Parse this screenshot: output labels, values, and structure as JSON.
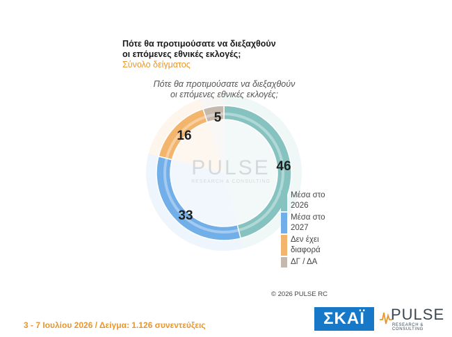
{
  "header": {
    "question_lines": [
      "Πότε θα προτιμούσατε να διεξαχθούν",
      "οι επόμενες εθνικές εκλογές;"
    ],
    "subtitle": "Σύνολο δείγματος"
  },
  "chart_data": {
    "type": "pie",
    "title_lines": [
      "Πότε θα προτιμούσατε να διεξαχθούν",
      "οι επόμενες εθνικές εκλογές;"
    ],
    "categories": [
      "Μέσα στο 2026",
      "Μέσα στο 2027",
      "Δεν έχει διαφορά",
      "ΔΓ / ΔΑ"
    ],
    "legend_lines": [
      [
        "Μέσα στο",
        "2026"
      ],
      [
        "Μέσα στο",
        "2027"
      ],
      [
        "Δεν έχει",
        "διαφορά"
      ],
      [
        "ΔΓ / ΔΑ"
      ]
    ],
    "values": [
      46,
      33,
      16,
      5
    ],
    "colors": [
      "#86c3c0",
      "#72aee8",
      "#f3b46c",
      "#c5b8ac"
    ],
    "legend_position": "right"
  },
  "watermark": {
    "name": "PULSE",
    "sub": "RESEARCH & CONSULTING"
  },
  "copyright": "©  2026  PULSE RC",
  "footer": "3 - 7  Ιουλίου 2026  /  Δείγμα:  1.126 συνεντεύξεις",
  "logos": {
    "skai": "ΣΚΑΪ",
    "pulse_name": "PULSE",
    "pulse_sub": "RESEARCH & CONSULTING"
  }
}
